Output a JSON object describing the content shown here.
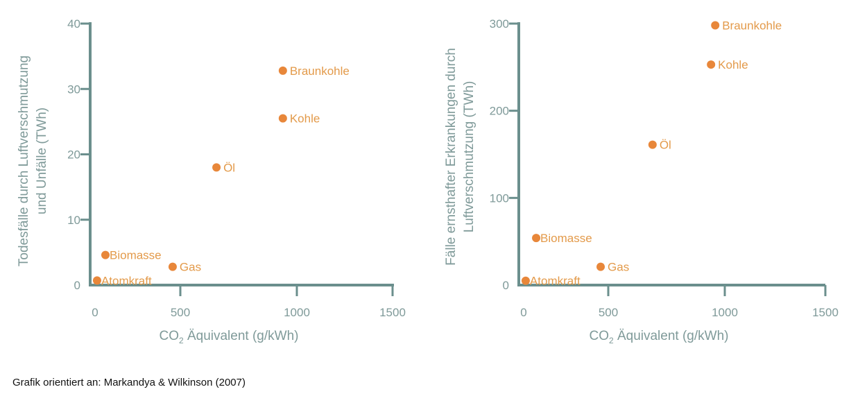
{
  "chart_data": [
    {
      "type": "scatter",
      "ylabel_lines": [
        "Todesfälle durch Luftverschmutzung",
        "und Unfälle (TWh)"
      ],
      "xlabel_main": "CO",
      "xlabel_sub": "2",
      "xlabel_rest": " Äquivalent (g/kWh)",
      "xlim": [
        0,
        1500
      ],
      "ylim": [
        0,
        40
      ],
      "xticks": [
        0,
        500,
        1000,
        1500
      ],
      "yticks": [
        0,
        10,
        20,
        30,
        40
      ],
      "grid": false,
      "points": [
        {
          "label": "Atomkraft",
          "x": 12,
          "y": 0.7
        },
        {
          "label": "Biomasse",
          "x": 61,
          "y": 4.6
        },
        {
          "label": "Gas",
          "x": 455,
          "y": 2.8
        },
        {
          "label": "Öl",
          "x": 655,
          "y": 18
        },
        {
          "label": "Kohle",
          "x": 940,
          "y": 25.5
        },
        {
          "label": "Braunkohle",
          "x": 940,
          "y": 32.8
        }
      ]
    },
    {
      "type": "scatter",
      "ylabel_lines": [
        "Fälle ernsthafter Erkrankungen durch",
        "Luftverschmutzung (TWh)"
      ],
      "xlabel_main": "CO",
      "xlabel_sub": "2",
      "xlabel_rest": " Äquivalent (g/kWh)",
      "xlim": [
        0,
        1500
      ],
      "ylim": [
        0,
        300
      ],
      "xticks": [
        0,
        500,
        1000,
        1500
      ],
      "yticks": [
        0,
        100,
        200,
        300
      ],
      "grid": false,
      "points": [
        {
          "label": "Atomkraft",
          "x": 12,
          "y": 5
        },
        {
          "label": "Biomasse",
          "x": 74,
          "y": 54
        },
        {
          "label": "Gas",
          "x": 455,
          "y": 21
        },
        {
          "label": "Öl",
          "x": 690,
          "y": 161
        },
        {
          "label": "Kohle",
          "x": 941,
          "y": 253
        },
        {
          "label": "Braunkohle",
          "x": 959,
          "y": 298
        }
      ]
    }
  ],
  "colors": {
    "axis": "#6b8f8d",
    "point": "#e8873a",
    "label": "#e39a4a"
  },
  "source": "Grafik orientiert  an: Markandya & Wilkinson (2007)"
}
